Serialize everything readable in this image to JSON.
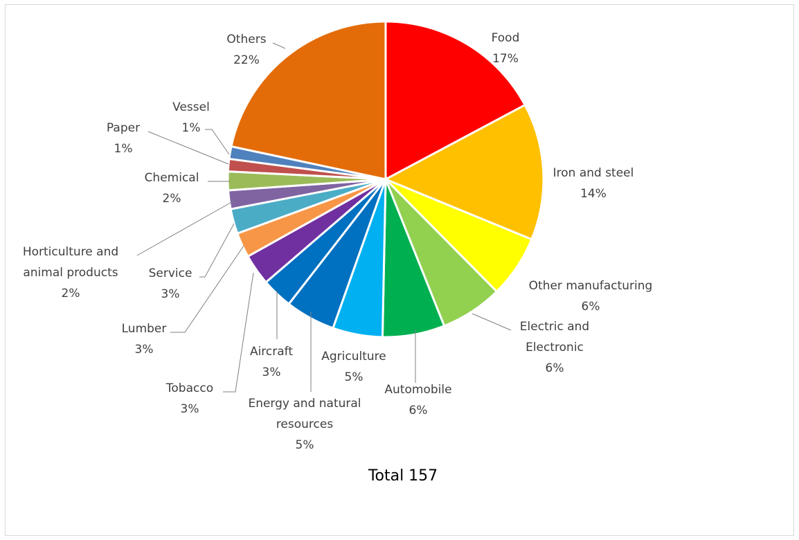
{
  "chart_data": {
    "type": "pie",
    "title": "",
    "total_label": "Total 157",
    "start_angle_deg": 0,
    "direction": "clockwise",
    "slices": [
      {
        "name": "Food",
        "percent_label": "17%",
        "value": 27,
        "color": "#ff0000"
      },
      {
        "name": "Iron and steel",
        "percent_label": "14%",
        "value": 22,
        "color": "#ffc000"
      },
      {
        "name": "Other manufacturing",
        "percent_label": "6%",
        "value": 10,
        "color": "#ffff00"
      },
      {
        "name": "Electric and Electronic",
        "percent_label": "6%",
        "value": 10,
        "color": "#92d050"
      },
      {
        "name": "Automobile",
        "percent_label": "6%",
        "value": 10,
        "color": "#00b050"
      },
      {
        "name": "Agriculture",
        "percent_label": "5%",
        "value": 8,
        "color": "#00b0f0"
      },
      {
        "name": "Energy and natural resources",
        "percent_label": "5%",
        "value": 8,
        "color": "#0070c0"
      },
      {
        "name": "Aircraft",
        "percent_label": "3%",
        "value": 5,
        "color": "#0070c0"
      },
      {
        "name": "Tobacco",
        "percent_label": "3%",
        "value": 5,
        "color": "#7030a0"
      },
      {
        "name": "Lumber",
        "percent_label": "3%",
        "value": 4,
        "color": "#f79646"
      },
      {
        "name": "Service",
        "percent_label": "3%",
        "value": 4,
        "color": "#4bacc6"
      },
      {
        "name": "Horticulture and animal products",
        "percent_label": "2%",
        "value": 3,
        "color": "#8064a2"
      },
      {
        "name": "Chemical",
        "percent_label": "2%",
        "value": 3,
        "color": "#9bbb59"
      },
      {
        "name": "Paper",
        "percent_label": "1%",
        "value": 2,
        "color": "#c0504d"
      },
      {
        "name": "Vessel",
        "percent_label": "1%",
        "value": 2,
        "color": "#4f81bd"
      },
      {
        "name": "Others",
        "percent_label": "22%",
        "value": 34,
        "color": "#e36c09"
      }
    ]
  }
}
